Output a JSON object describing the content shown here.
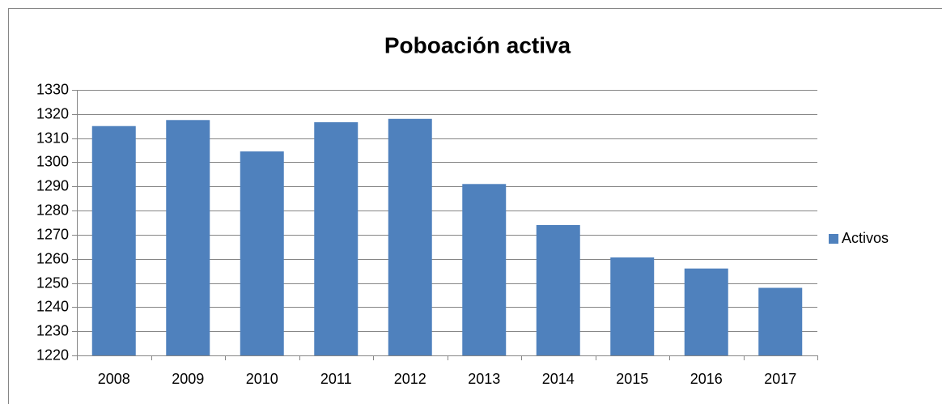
{
  "chart_data": {
    "type": "bar",
    "title": "Poboación activa",
    "categories": [
      "2008",
      "2009",
      "2010",
      "2011",
      "2012",
      "2013",
      "2014",
      "2015",
      "2016",
      "2017"
    ],
    "series": [
      {
        "name": "Activos",
        "color": "#4f81bd",
        "values": [
          1315,
          1317.5,
          1304.5,
          1316.6,
          1318,
          1291,
          1274,
          1260.6,
          1256,
          1248
        ]
      }
    ],
    "ylim": [
      1220,
      1330
    ],
    "yticks": [
      1220,
      1230,
      1240,
      1250,
      1260,
      1270,
      1280,
      1290,
      1300,
      1310,
      1320,
      1330
    ],
    "grid": true,
    "legend": "right"
  }
}
